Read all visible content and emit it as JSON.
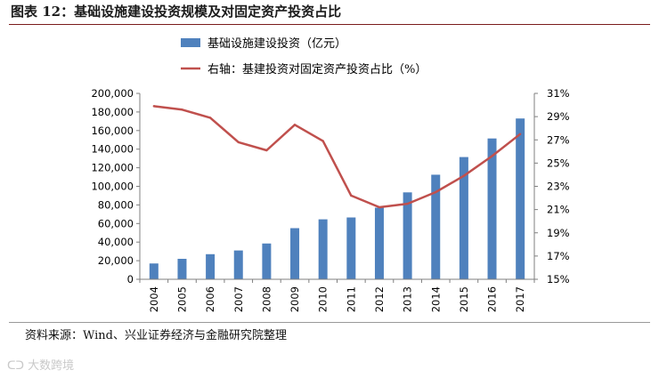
{
  "page": {
    "title": "图表 12：基础设施建设投资规模及对固定资产投资占比",
    "source": "资料来源：Wind、兴业证券经济与金融研究院整理",
    "watermark": "大数跨境"
  },
  "colors": {
    "bar": "#4f81bd",
    "line": "#c0504d",
    "title_rule": "#7b1c1c",
    "watermark": "#c9c9c9"
  },
  "chart_data": {
    "type": "bar",
    "categories": [
      "2004",
      "2005",
      "2006",
      "2007",
      "2008",
      "2009",
      "2010",
      "2011",
      "2012",
      "2013",
      "2014",
      "2015",
      "2016",
      "2017"
    ],
    "series": [
      {
        "name": "基础设施建设投资（亿元）",
        "type": "bar",
        "axis": "left",
        "values": [
          17000,
          22000,
          27000,
          31000,
          38500,
          55000,
          64500,
          66500,
          77000,
          93500,
          112500,
          131500,
          151500,
          173000
        ]
      },
      {
        "name": "右轴：基建投资对固定资产投资占比（%）",
        "type": "line",
        "axis": "right",
        "values": [
          29.9,
          29.6,
          28.9,
          26.8,
          26.1,
          28.3,
          26.9,
          22.2,
          21.2,
          21.5,
          22.5,
          23.9,
          25.6,
          27.5
        ]
      }
    ],
    "y_left": {
      "ylim": [
        0,
        200000
      ],
      "ticks": [
        "0",
        "20,000",
        "40,000",
        "60,000",
        "80,000",
        "100,000",
        "120,000",
        "140,000",
        "160,000",
        "180,000",
        "200,000"
      ]
    },
    "y_right": {
      "ylim": [
        15,
        31
      ],
      "ticks": [
        "15%",
        "17%",
        "19%",
        "21%",
        "23%",
        "25%",
        "27%",
        "29%",
        "31%"
      ]
    },
    "legend_position": "top-center",
    "grid": false
  }
}
